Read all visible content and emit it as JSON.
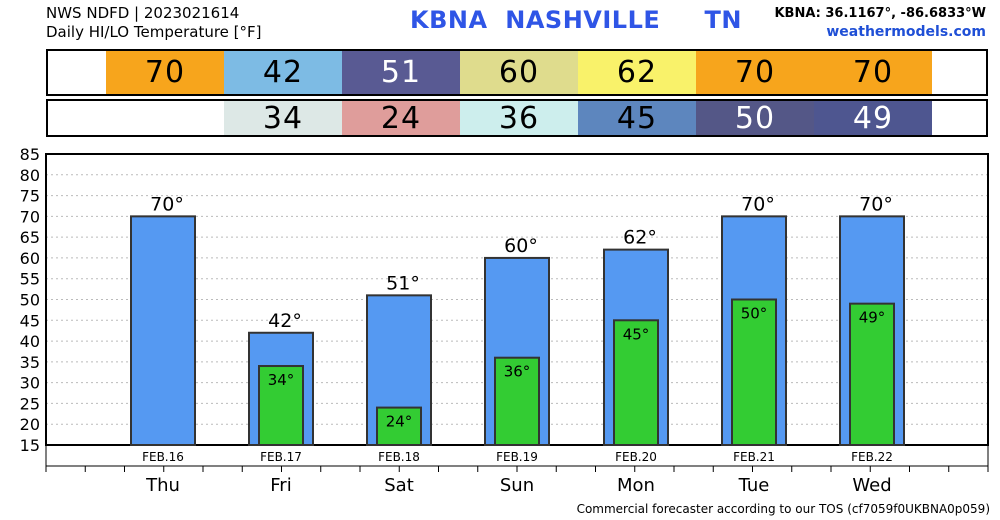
{
  "header": {
    "line1": "NWS NDFD | 2023021614",
    "line2": "Daily HI/LO Temperature [°F]",
    "title": "KBNA  NASHVILLE     TN",
    "coords": "KBNA: 36.1167°, -86.6833°W",
    "site": "weathermodels.com"
  },
  "footer": "Commercial forecaster according to our TOS (cf7059f0UKBNA0p059)",
  "hi_strip": [
    {
      "value": "70",
      "color": "#f7a51c"
    },
    {
      "value": "42",
      "color": "#7dbbe4"
    },
    {
      "value": "51",
      "color": "#595a93"
    },
    {
      "value": "60",
      "color": "#dfdc8d"
    },
    {
      "value": "62",
      "color": "#f9f26a"
    },
    {
      "value": "70",
      "color": "#f7a51c"
    },
    {
      "value": "70",
      "color": "#f7a51c"
    }
  ],
  "lo_strip": [
    {
      "value": "",
      "color": "#ffffff"
    },
    {
      "value": "34",
      "color": "#dde8e6"
    },
    {
      "value": "24",
      "color": "#df9d9b"
    },
    {
      "value": "36",
      "color": "#cdeeed"
    },
    {
      "value": "45",
      "color": "#5d86be"
    },
    {
      "value": "50",
      "color": "#545787"
    },
    {
      "value": "49",
      "color": "#4e5690"
    }
  ],
  "chart_data": {
    "type": "bar",
    "categories": [
      "Thu",
      "Fri",
      "Sat",
      "Sun",
      "Mon",
      "Tue",
      "Wed"
    ],
    "dates": [
      "FEB.16",
      "FEB.17",
      "FEB.18",
      "FEB.19",
      "FEB.20",
      "FEB.21",
      "FEB.22"
    ],
    "series": [
      {
        "values": [
          70,
          42,
          51,
          60,
          62,
          70,
          70
        ],
        "labels": [
          "70°",
          "42°",
          "51°",
          "60°",
          "62°",
          "70°",
          "70°"
        ],
        "color": "#5599f2"
      },
      {
        "values": [
          null,
          34,
          24,
          36,
          45,
          50,
          49
        ],
        "labels": [
          "",
          "34°",
          "24°",
          "36°",
          "45°",
          "50°",
          "49°"
        ],
        "color": "#33cc33"
      }
    ],
    "ylim": [
      15,
      85
    ],
    "yticks": [
      15,
      20,
      25,
      30,
      35,
      40,
      45,
      50,
      55,
      60,
      65,
      70,
      75,
      80,
      85
    ],
    "grid": true
  }
}
